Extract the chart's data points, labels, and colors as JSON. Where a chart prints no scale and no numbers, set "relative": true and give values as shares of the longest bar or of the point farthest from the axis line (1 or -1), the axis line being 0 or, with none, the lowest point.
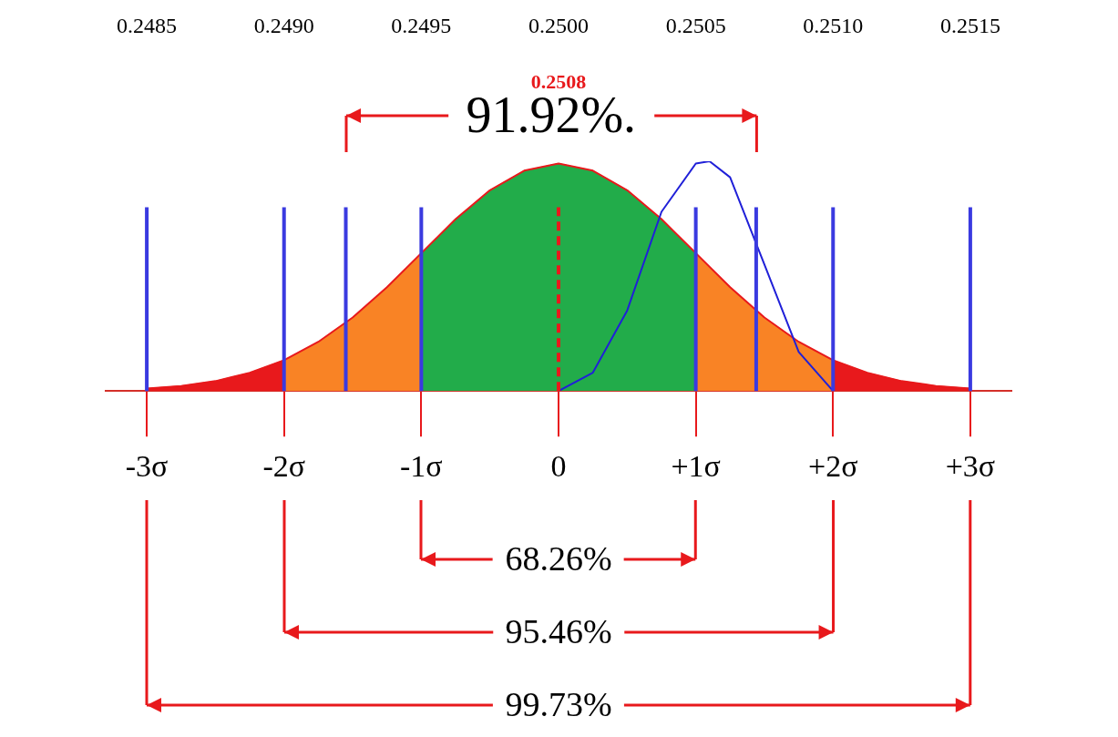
{
  "chart_data": {
    "type": "area",
    "relative": true,
    "marker": "none",
    "grid": false,
    "legend": false,
    "xlim": [
      -3.3,
      3.3
    ],
    "xticks": [
      {
        "value": -3,
        "label": "-3σ"
      },
      {
        "value": -2,
        "label": "-2σ"
      },
      {
        "value": -1,
        "label": "-1σ"
      },
      0,
      {
        "value": 1,
        "label": "+1σ"
      },
      {
        "value": 2,
        "label": "+2σ"
      },
      {
        "value": 3,
        "label": "+3σ"
      }
    ],
    "x2lim": [
      0.24835,
      0.25165
    ],
    "x2ticks": [
      {
        "value": 0.2485,
        "label": "0.2485"
      },
      {
        "value": 0.249,
        "label": "0.2490"
      },
      {
        "value": 0.2495,
        "label": "0.2495"
      },
      {
        "value": 0.25,
        "label": "0.2500"
      },
      {
        "value": 0.2505,
        "label": "0.2505"
      },
      {
        "value": 0.251,
        "label": "0.2510"
      },
      {
        "value": 0.2515,
        "label": "0.2515"
      }
    ],
    "series": [
      {
        "color": "#e8191c",
        "x": [
          -3,
          -2.75,
          -2.5,
          -2.25,
          -2
        ],
        "values": [
          0.011,
          0.022,
          0.043,
          0.079,
          0.134
        ]
      },
      {
        "color": "#f98325",
        "x": [
          -2,
          -1.75,
          -1.5,
          -1.25,
          -1
        ],
        "values": [
          0.134,
          0.214,
          0.32,
          0.452,
          0.6
        ]
      },
      {
        "color": "#22ac4a",
        "x": [
          -1,
          -0.75,
          -0.5,
          -0.25,
          0,
          0.25,
          0.5,
          0.75,
          1
        ],
        "values": [
          0.6,
          0.748,
          0.874,
          0.959,
          0.99,
          0.959,
          0.874,
          0.748,
          0.6
        ]
      },
      {
        "color": "#f98325",
        "x": [
          1,
          1.25,
          1.5,
          1.75,
          2
        ],
        "values": [
          0.6,
          0.452,
          0.32,
          0.214,
          0.134
        ]
      },
      {
        "color": "#e8191c",
        "x": [
          2,
          2.25,
          2.5,
          2.75,
          3
        ],
        "values": [
          0.134,
          0.079,
          0.043,
          0.022,
          0.011
        ]
      },
      {
        "type": "line",
        "color": "#e8191c",
        "x": [
          -3,
          -2.75,
          -2.5,
          -2.25,
          -2,
          -1.75,
          -1.5,
          -1.25,
          -1,
          -0.75,
          -0.5,
          -0.25,
          0,
          0.25,
          0.5,
          0.75,
          1,
          1.25,
          1.5,
          1.75,
          2,
          2.25,
          2.5,
          2.75,
          3
        ],
        "values": [
          0.011,
          0.022,
          0.043,
          0.079,
          0.134,
          0.214,
          0.32,
          0.452,
          0.6,
          0.748,
          0.874,
          0.959,
          0.99,
          0.959,
          0.874,
          0.748,
          0.6,
          0.452,
          0.32,
          0.214,
          0.134,
          0.079,
          0.043,
          0.022,
          0.011
        ]
      },
      {
        "type": "line",
        "color": "#2020d8",
        "x": [
          0,
          0.25,
          0.5,
          0.75,
          1,
          1.1,
          1.25,
          1.5,
          1.75,
          2
        ],
        "values": [
          0,
          0.08,
          0.35,
          0.78,
          0.99,
          1,
          0.93,
          0.55,
          0.17,
          0
        ]
      }
    ],
    "ref_lines": [
      {
        "axis": "x",
        "value": -3,
        "color": "#3a3ae0"
      },
      {
        "axis": "x",
        "value": -2,
        "color": "#3a3ae0"
      },
      {
        "axis": "x",
        "value": -1.55,
        "color": "#3a3ae0"
      },
      {
        "axis": "x",
        "value": -1,
        "color": "#3a3ae0"
      },
      {
        "axis": "x",
        "value": 0,
        "color": "#e8191c",
        "line_style": "dashed"
      },
      {
        "axis": "x",
        "value": 1,
        "color": "#3a3ae0"
      },
      {
        "axis": "x",
        "value": 1.44,
        "color": "#3a3ae0"
      },
      {
        "axis": "x",
        "value": 2,
        "color": "#3a3ae0"
      },
      {
        "axis": "x",
        "value": 3,
        "color": "#3a3ae0"
      }
    ],
    "annotations": [
      "0.2508",
      "91.92%.",
      "68.26%",
      "95.46%",
      "99.73%"
    ]
  }
}
